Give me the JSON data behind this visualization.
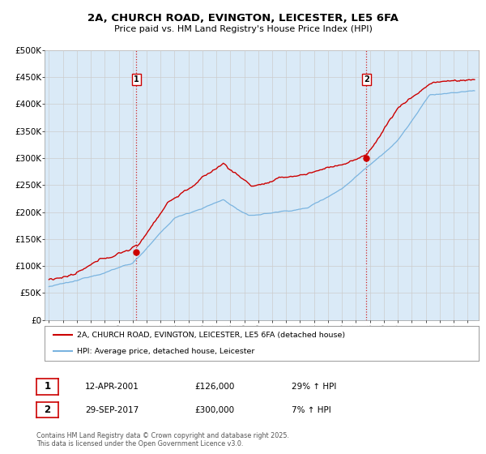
{
  "title_line1": "2A, CHURCH ROAD, EVINGTON, LEICESTER, LE5 6FA",
  "title_line2": "Price paid vs. HM Land Registry's House Price Index (HPI)",
  "ylabel_ticks": [
    "£0",
    "£50K",
    "£100K",
    "£150K",
    "£200K",
    "£250K",
    "£300K",
    "£350K",
    "£400K",
    "£450K",
    "£500K"
  ],
  "ytick_values": [
    0,
    50000,
    100000,
    150000,
    200000,
    250000,
    300000,
    350000,
    400000,
    450000,
    500000
  ],
  "xlim": [
    1994.7,
    2025.8
  ],
  "ylim": [
    0,
    500000
  ],
  "hpi_color": "#7ab4e0",
  "hpi_fill_color": "#daeaf7",
  "price_color": "#cc0000",
  "vline_color": "#cc0000",
  "sale1_x": 2001.27,
  "sale1_y": 126000,
  "sale1_label": "1",
  "sale1_date": "12-APR-2001",
  "sale1_price": "£126,000",
  "sale1_hpi": "29% ↑ HPI",
  "sale2_x": 2017.74,
  "sale2_y": 300000,
  "sale2_label": "2",
  "sale2_date": "29-SEP-2017",
  "sale2_price": "£300,000",
  "sale2_hpi": "7% ↑ HPI",
  "legend_line1": "2A, CHURCH ROAD, EVINGTON, LEICESTER, LE5 6FA (detached house)",
  "legend_line2": "HPI: Average price, detached house, Leicester",
  "footer_line1": "Contains HM Land Registry data © Crown copyright and database right 2025.",
  "footer_line2": "This data is licensed under the Open Government Licence v3.0.",
  "bg_color": "#ffffff",
  "grid_color": "#cccccc"
}
